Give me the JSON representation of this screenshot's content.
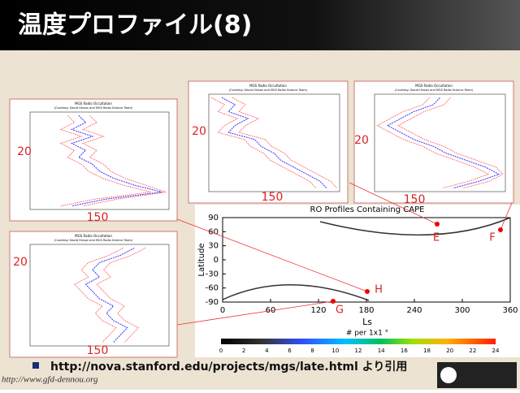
{
  "header": {
    "title": "温度プロファイル(8)"
  },
  "panels": [
    {
      "title": "MGS Radio Occultation",
      "credit": "(Courtesy: David Hinson and MGS Radio Science Team)",
      "height_label": "20",
      "temp_label": "150"
    },
    {
      "title": "MGS Radio Occultation",
      "credit": "(Courtesy: David Hinson and MGS Radio Science Team)",
      "height_label": "20",
      "temp_label": "150"
    },
    {
      "title": "MGS Radio Occultation",
      "credit": "(Courtesy: David Hinson and MGS Radio Science Team)",
      "height_label": "20",
      "temp_label": "150"
    },
    {
      "title": "MGS Radio Occultation",
      "credit": "(Courtesy: David Hinson and MGS Radio Science Team)",
      "height_label": "20",
      "temp_label": "150"
    }
  ],
  "map": {
    "title": "RO Profiles Containing CAPE",
    "ylabel": "Latitude",
    "xlabel": "Ls",
    "yticks": [
      90,
      60,
      30,
      0,
      -30,
      -60,
      -90
    ],
    "xticks": [
      0,
      60,
      120,
      180,
      240,
      300,
      360
    ],
    "points": [
      "E",
      "F",
      "G",
      "H"
    ],
    "colorbar": {
      "label": "# per 1x1 °",
      "ticks": [
        0,
        2,
        4,
        6,
        8,
        10,
        12,
        14,
        16,
        18,
        20,
        22,
        24
      ]
    }
  },
  "bullet": "http://nova.stanford.edu/projects/mgs/late.html より引用",
  "footer": "http://www.gfd-dennou.org"
}
